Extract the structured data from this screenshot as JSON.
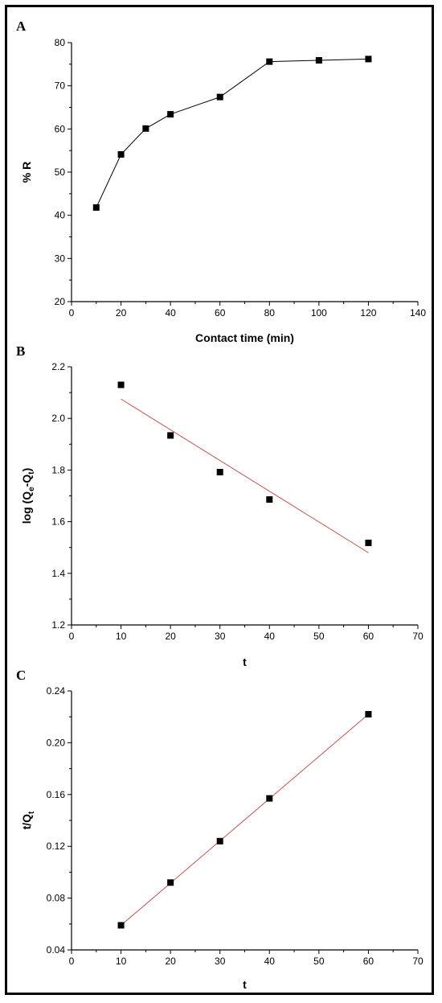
{
  "chart_data": [
    {
      "panel": "A",
      "type": "line",
      "xlabel": "Contact time (min)",
      "ylabel": "% R",
      "xlim": [
        0,
        140
      ],
      "ylim": [
        20,
        80
      ],
      "xticks": [
        0,
        20,
        40,
        60,
        80,
        100,
        120,
        140
      ],
      "yticks": [
        20,
        30,
        40,
        50,
        60,
        70,
        80
      ],
      "x": [
        10,
        20,
        30,
        40,
        60,
        80,
        100,
        120
      ],
      "y": [
        41.8,
        54.1,
        60.1,
        63.4,
        67.4,
        75.6,
        75.9,
        76.2
      ],
      "line_color": "#000000",
      "fit": null
    },
    {
      "panel": "B",
      "type": "scatter",
      "xlabel": "t",
      "ylabel": "log (Qe-Qt)",
      "ylabel_parts": {
        "pre": "log (Q",
        "sub1": "e",
        "mid": "-Q",
        "sub2": "t",
        "post": ")"
      },
      "xlim": [
        0,
        70
      ],
      "ylim": [
        1.2,
        2.2
      ],
      "xticks": [
        0,
        10,
        20,
        30,
        40,
        50,
        60,
        70
      ],
      "yticks": [
        1.2,
        1.4,
        1.6,
        1.8,
        2.0,
        2.2
      ],
      "ytick_labels": [
        "1.2",
        "1.4",
        "1.6",
        "1.8",
        "2.0",
        "2.2"
      ],
      "x": [
        10,
        20,
        30,
        40,
        60
      ],
      "y": [
        2.13,
        1.934,
        1.792,
        1.686,
        1.518
      ],
      "fit": {
        "x": [
          10,
          60
        ],
        "y": [
          2.075,
          1.48
        ],
        "color": "#c0504d"
      }
    },
    {
      "panel": "C",
      "type": "scatter",
      "xlabel": "t",
      "ylabel": "t/Qt",
      "ylabel_parts": {
        "pre": "t/Q",
        "sub1": "t",
        "mid": "",
        "sub2": "",
        "post": ""
      },
      "xlim": [
        0,
        70
      ],
      "ylim": [
        0.04,
        0.24
      ],
      "xticks": [
        0,
        10,
        20,
        30,
        40,
        50,
        60,
        70
      ],
      "yticks": [
        0.04,
        0.08,
        0.12,
        0.16,
        0.2,
        0.24
      ],
      "ytick_labels": [
        "0.04",
        "0.08",
        "0.12",
        "0.16",
        "0.20",
        "0.24"
      ],
      "x": [
        10,
        20,
        30,
        40,
        60
      ],
      "y": [
        0.059,
        0.092,
        0.124,
        0.157,
        0.222
      ],
      "fit": {
        "x": [
          10,
          60
        ],
        "y": [
          0.059,
          0.222
        ],
        "color": "#c0504d"
      }
    }
  ]
}
